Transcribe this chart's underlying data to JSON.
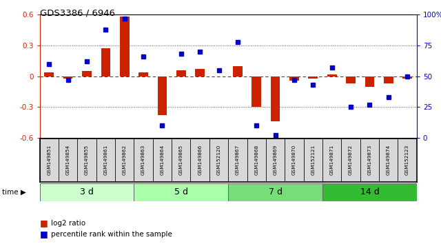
{
  "title": "GDS3386 / 6946",
  "samples": [
    "GSM149851",
    "GSM149854",
    "GSM149855",
    "GSM149861",
    "GSM149862",
    "GSM149863",
    "GSM149864",
    "GSM149865",
    "GSM149866",
    "GSM152120",
    "GSM149867",
    "GSM149868",
    "GSM149869",
    "GSM149870",
    "GSM152121",
    "GSM149871",
    "GSM149872",
    "GSM149873",
    "GSM149874",
    "GSM152123"
  ],
  "log2_ratio": [
    0.04,
    -0.02,
    0.05,
    0.27,
    0.58,
    0.04,
    -0.38,
    0.06,
    0.07,
    0.0,
    0.1,
    -0.3,
    -0.44,
    -0.04,
    -0.02,
    0.02,
    -0.07,
    -0.1,
    -0.07,
    -0.02
  ],
  "percentile": [
    60,
    47,
    62,
    88,
    97,
    66,
    10,
    68,
    70,
    55,
    78,
    10,
    2,
    47,
    43,
    57,
    25,
    27,
    33,
    50
  ],
  "time_groups": [
    {
      "label": "3 d",
      "start": 0,
      "end": 5,
      "color": "#ccffcc"
    },
    {
      "label": "5 d",
      "start": 5,
      "end": 10,
      "color": "#aaffaa"
    },
    {
      "label": "7 d",
      "start": 10,
      "end": 15,
      "color": "#77dd77"
    },
    {
      "label": "14 d",
      "start": 15,
      "end": 20,
      "color": "#33bb33"
    }
  ],
  "ylim_left": [
    -0.6,
    0.6
  ],
  "ylim_right": [
    0,
    100
  ],
  "bar_color": "#cc2200",
  "dot_color": "#0000cc",
  "zero_line_color": "#cc0000",
  "dotted_line_color": "#555555",
  "bg_color": "#ffffff",
  "tick_color_left": "#cc2200",
  "tick_color_right": "#0000cc"
}
